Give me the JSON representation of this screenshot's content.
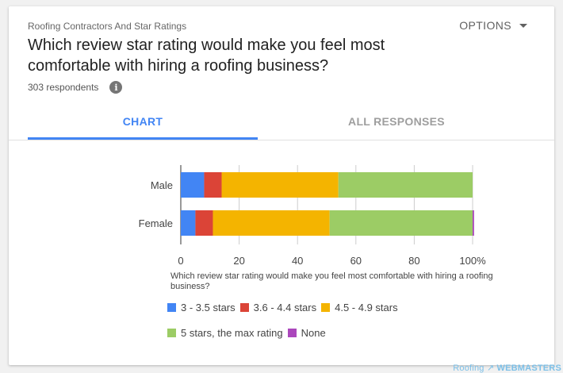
{
  "header": {
    "survey_title": "Roofing Contractors And Star Ratings",
    "options_label": "OPTIONS",
    "question": "Which review star rating would make you feel most comfortable with hiring a roofing business?",
    "respondents": "303 respondents"
  },
  "tabs": [
    {
      "label": "CHART",
      "active": true
    },
    {
      "label": "ALL RESPONSES",
      "active": false
    }
  ],
  "chart_data": {
    "type": "bar",
    "orientation": "horizontal",
    "stacked": true,
    "categories": [
      "Male",
      "Female"
    ],
    "series": [
      {
        "name": "3 - 3.5 stars",
        "color": "#4285f4",
        "values": [
          8,
          5
        ]
      },
      {
        "name": "3.6 - 4.4 stars",
        "color": "#db4437",
        "values": [
          6,
          6
        ]
      },
      {
        "name": "4.5 - 4.9 stars",
        "color": "#f4b400",
        "values": [
          40,
          40
        ]
      },
      {
        "name": "5 stars, the max rating",
        "color": "#9ccc65",
        "values": [
          46,
          49
        ]
      },
      {
        "name": "None",
        "color": "#ab47bc",
        "values": [
          0,
          0.5
        ]
      }
    ],
    "xticks": [
      "0",
      "20",
      "40",
      "60",
      "80",
      "100%"
    ],
    "xlim": [
      0,
      100
    ],
    "grid": true,
    "legend_title": "Which review star rating would make you feel most comfortable with hiring a roofing business?",
    "legend_position": "bottom"
  },
  "footer": {
    "logo_part1": "Roofing",
    "logo_part2": "WEBMASTERS"
  }
}
